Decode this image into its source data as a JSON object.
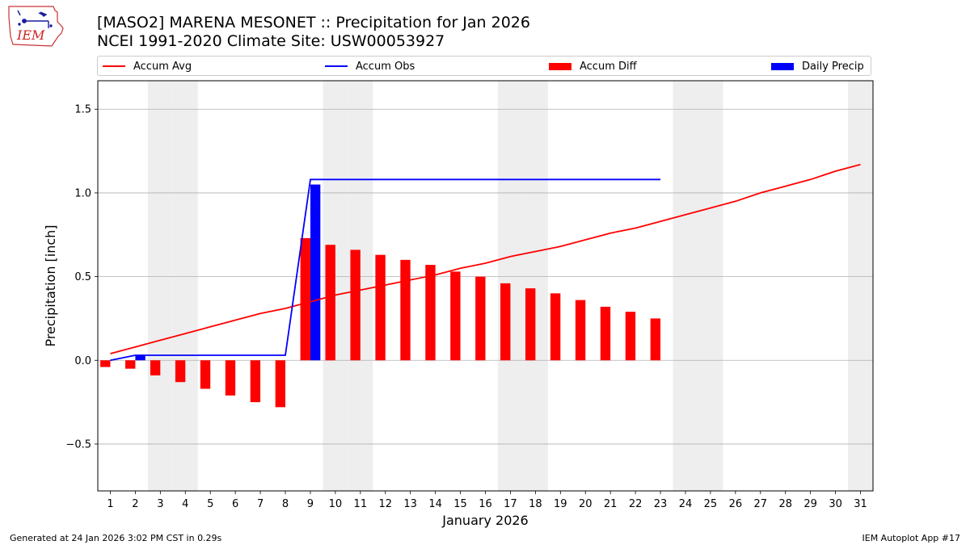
{
  "header": {
    "title": "[MASO2] MARENA MESONET :: Precipitation for Jan 2026",
    "subtitle": "NCEI 1991-2020 Climate Site: USW00053927",
    "logo_text": "IEM"
  },
  "legend": {
    "items": [
      {
        "label": "Accum Avg",
        "kind": "line",
        "color": "#ff0000"
      },
      {
        "label": "Accum Obs",
        "kind": "line",
        "color": "#0000ff"
      },
      {
        "label": "Accum Diff",
        "kind": "patch",
        "color": "#ff0000"
      },
      {
        "label": "Daily Precip",
        "kind": "patch",
        "color": "#0000ff"
      }
    ]
  },
  "chart_data": {
    "type": "bar",
    "xlabel": "January 2026",
    "ylabel": "Precipitation [inch]",
    "xlim": [
      0.5,
      31.5
    ],
    "ylim": [
      -0.78,
      1.67
    ],
    "yticks": [
      -0.5,
      0.0,
      0.5,
      1.0,
      1.5
    ],
    "ytick_labels": [
      "−0.5",
      "0.0",
      "0.5",
      "1.0",
      "1.5"
    ],
    "days": [
      1,
      2,
      3,
      4,
      5,
      6,
      7,
      8,
      9,
      10,
      11,
      12,
      13,
      14,
      15,
      16,
      17,
      18,
      19,
      20,
      21,
      22,
      23,
      24,
      25,
      26,
      27,
      28,
      29,
      30,
      31
    ],
    "weekend_days": [
      3,
      4,
      10,
      11,
      17,
      18,
      24,
      25,
      31
    ],
    "grid": "y",
    "legend_placement": "top",
    "series": [
      {
        "name": "Accum Avg",
        "kind": "line",
        "color": "#ff0000",
        "x": [
          1,
          2,
          3,
          4,
          5,
          6,
          7,
          8,
          9,
          10,
          11,
          12,
          13,
          14,
          15,
          16,
          17,
          18,
          19,
          20,
          21,
          22,
          23,
          24,
          25,
          26,
          27,
          28,
          29,
          30,
          31
        ],
        "values": [
          0.04,
          0.08,
          0.12,
          0.16,
          0.2,
          0.24,
          0.28,
          0.31,
          0.35,
          0.39,
          0.42,
          0.45,
          0.48,
          0.51,
          0.55,
          0.58,
          0.62,
          0.65,
          0.68,
          0.72,
          0.76,
          0.79,
          0.83,
          0.87,
          0.91,
          0.95,
          1.0,
          1.04,
          1.08,
          1.13,
          1.17
        ]
      },
      {
        "name": "Accum Obs",
        "kind": "line",
        "color": "#0000ff",
        "x": [
          1,
          2,
          3,
          4,
          5,
          6,
          7,
          8,
          9,
          10,
          11,
          12,
          13,
          14,
          15,
          16,
          17,
          18,
          19,
          20,
          21,
          22,
          23
        ],
        "values": [
          0.0,
          0.03,
          0.03,
          0.03,
          0.03,
          0.03,
          0.03,
          0.03,
          1.08,
          1.08,
          1.08,
          1.08,
          1.08,
          1.08,
          1.08,
          1.08,
          1.08,
          1.08,
          1.08,
          1.08,
          1.08,
          1.08,
          1.08
        ]
      },
      {
        "name": "Accum Diff",
        "kind": "bar",
        "color": "#ff0000",
        "x": [
          1,
          2,
          3,
          4,
          5,
          6,
          7,
          8,
          9,
          10,
          11,
          12,
          13,
          14,
          15,
          16,
          17,
          18,
          19,
          20,
          21,
          22,
          23
        ],
        "values": [
          -0.04,
          -0.05,
          -0.09,
          -0.13,
          -0.17,
          -0.21,
          -0.25,
          -0.28,
          0.73,
          0.69,
          0.66,
          0.63,
          0.6,
          0.57,
          0.53,
          0.5,
          0.46,
          0.43,
          0.4,
          0.36,
          0.32,
          0.29,
          0.25
        ]
      },
      {
        "name": "Daily Precip",
        "kind": "bar",
        "color": "#0000ff",
        "x": [
          2,
          9
        ],
        "values": [
          0.03,
          1.05
        ]
      }
    ]
  },
  "footer": {
    "generated": "Generated at 24 Jan 2026 3:02 PM CST in 0.29s",
    "app": "IEM Autoplot App #17"
  }
}
